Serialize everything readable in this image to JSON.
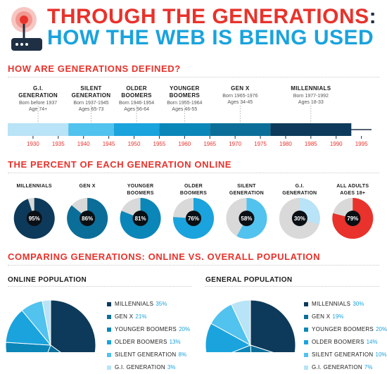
{
  "title": {
    "line1": "THROUGH THE GENERATIONS",
    "colon": ":",
    "line2": "HOW THE WEB IS BEING USED"
  },
  "sections": {
    "defined": "HOW ARE GENERATIONS DEFINED?",
    "percent_online": "THE PERCENT OF EACH GENERATION ONLINE",
    "comparing": "COMPARING GENERATIONS: ONLINE VS. OVERALL POPULATION"
  },
  "colors": {
    "red": "#e8322b",
    "blue": "#1aa3dd",
    "navy": "#0d3a5a",
    "gray": "#d9d9d9",
    "dark": "#1f2f44"
  },
  "chart_data": [
    {
      "type": "bar",
      "name": "generations-timeline",
      "xlim": [
        1925,
        1997
      ],
      "ticks": [
        1930,
        1935,
        1940,
        1945,
        1950,
        1955,
        1960,
        1965,
        1970,
        1975,
        1980,
        1985,
        1990,
        1995
      ],
      "generations": [
        {
          "name": "G.I.\nGENERATION",
          "range": "Born before 1937",
          "ages": "Age 74+",
          "start": 1925,
          "end": 1937,
          "color": "#b9e3f6"
        },
        {
          "name": "SILENT\nGENERATION",
          "range": "Born 1937-1945",
          "ages": "Ages 65-73",
          "start": 1937,
          "end": 1946,
          "color": "#52c2ee"
        },
        {
          "name": "OLDER\nBOOMERS",
          "range": "Born 1946-1954",
          "ages": "Ages 56-64",
          "start": 1946,
          "end": 1955,
          "color": "#1aa3dd"
        },
        {
          "name": "YOUNGER\nBOOMERS",
          "range": "Born 1955-1964",
          "ages": "Ages 46-55",
          "start": 1955,
          "end": 1965,
          "color": "#0b86b8"
        },
        {
          "name": "GEN X",
          "range": "Born 1965-1976",
          "ages": "Ages 34-45",
          "start": 1965,
          "end": 1977,
          "color": "#0b6e98"
        },
        {
          "name": "MILLENNIALS",
          "range": "Born 1977-1992",
          "ages": "Ages 18-33",
          "start": 1977,
          "end": 1993,
          "color": "#0d3a5a"
        }
      ]
    },
    {
      "type": "pie",
      "name": "percent-online",
      "items": [
        {
          "label": "MILLENNIALS",
          "value": 95,
          "color": "#0d3a5a"
        },
        {
          "label": "GEN X",
          "value": 86,
          "color": "#0b6e98"
        },
        {
          "label": "YOUNGER\nBOOMERS",
          "value": 81,
          "color": "#0b86b8"
        },
        {
          "label": "OLDER\nBOOMERS",
          "value": 76,
          "color": "#1aa3dd"
        },
        {
          "label": "SILENT\nGENERATION",
          "value": 58,
          "color": "#52c2ee"
        },
        {
          "label": "G.I.\nGENERATION",
          "value": 30,
          "color": "#b9e3f6"
        },
        {
          "label": "ALL ADULTS\nAGES 18+",
          "value": 79,
          "color": "#e8322b"
        }
      ],
      "remainder_color": "#d9d9d9",
      "unit": "%"
    },
    {
      "type": "pie",
      "name": "online-population",
      "title": "ONLINE POPULATION",
      "series": [
        {
          "name": "MILLENNIALS",
          "value": 35,
          "color": "#0d3a5a"
        },
        {
          "name": "GEN X",
          "value": 21,
          "color": "#0b6e98"
        },
        {
          "name": "YOUNGER BOOMERS",
          "value": 20,
          "color": "#0b86b8"
        },
        {
          "name": "OLDER BOOMERS",
          "value": 13,
          "color": "#1aa3dd"
        },
        {
          "name": "SILENT GENERATION",
          "value": 8,
          "color": "#52c2ee"
        },
        {
          "name": "G.I. GENERATION",
          "value": 3,
          "color": "#b9e3f6"
        }
      ]
    },
    {
      "type": "pie",
      "name": "general-population",
      "title": "GENERAL POPULATION",
      "series": [
        {
          "name": "MILLENNIALS",
          "value": 30,
          "color": "#0d3a5a"
        },
        {
          "name": "GEN X",
          "value": 19,
          "color": "#0b6e98"
        },
        {
          "name": "YOUNGER BOOMERS",
          "value": 20,
          "color": "#0b86b8"
        },
        {
          "name": "OLDER BOOMERS",
          "value": 14,
          "color": "#1aa3dd"
        },
        {
          "name": "SILENT GENERATION",
          "value": 10,
          "color": "#52c2ee"
        },
        {
          "name": "G.I. GENERATION",
          "value": 7,
          "color": "#b9e3f6"
        }
      ]
    }
  ]
}
